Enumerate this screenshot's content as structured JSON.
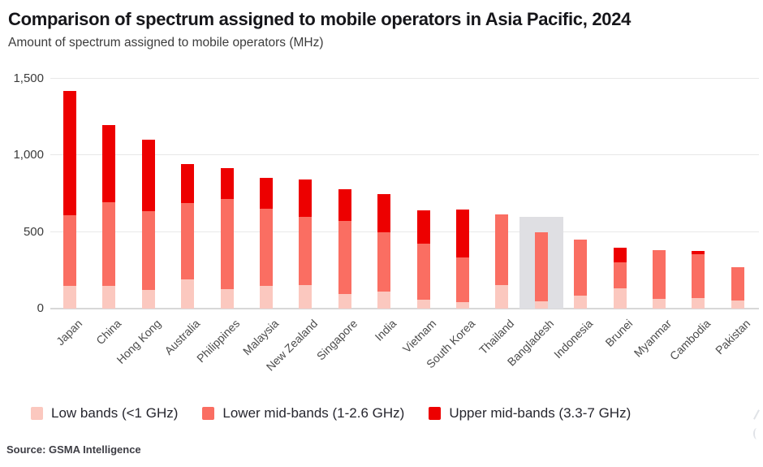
{
  "header": {
    "title": "Comparison of spectrum assigned to mobile operators in Asia Pacific, 2024",
    "subtitle": "Amount of spectrum assigned to mobile operators (MHz)"
  },
  "source": "Source: GSMA Intelligence",
  "chart_data": {
    "type": "bar",
    "stacked": true,
    "title": "Comparison of spectrum assigned to mobile operators in Asia Pacific, 2024",
    "ylabel": "Amount of spectrum assigned to mobile operators (MHz)",
    "ylim": [
      0,
      1500
    ],
    "grid": true,
    "legend_position": "bottom",
    "yticks": [
      {
        "value": 0,
        "label": "0"
      },
      {
        "value": 500,
        "label": "500"
      },
      {
        "value": 1000,
        "label": "1,000"
      },
      {
        "value": 1500,
        "label": "1,500"
      }
    ],
    "categories": [
      "Japan",
      "China",
      "Hong Kong",
      "Australia",
      "Philippines",
      "Malaysia",
      "New Zealand",
      "Singapore",
      "India",
      "Vietnam",
      "South Korea",
      "Thailand",
      "Bangladesh",
      "Indonesia",
      "Brunei",
      "Myanmar",
      "Cambodia",
      "Pakistan"
    ],
    "series": [
      {
        "name": "Low bands (<1 GHz)",
        "color": "#fbc8bf",
        "values": [
          150,
          150,
          120,
          190,
          125,
          150,
          155,
          95,
          110,
          60,
          45,
          155,
          50,
          85,
          135,
          65,
          70,
          55
        ]
      },
      {
        "name": "Lower mid-bands (1-2.6 GHz)",
        "color": "#fa6e62",
        "values": [
          460,
          545,
          515,
          500,
          590,
          500,
          445,
          475,
          390,
          365,
          290,
          460,
          450,
          365,
          165,
          315,
          285,
          215
        ]
      },
      {
        "name": "Upper mid-bands (3.3-7 GHz)",
        "color": "#ed0000",
        "values": [
          810,
          505,
          465,
          255,
          200,
          205,
          245,
          210,
          250,
          215,
          310,
          0,
          0,
          0,
          100,
          0,
          20,
          0
        ]
      }
    ],
    "totals": [
      1420,
      1200,
      1100,
      945,
      915,
      855,
      845,
      780,
      750,
      640,
      645,
      615,
      500,
      450,
      400,
      380,
      375,
      270
    ],
    "highlight": {
      "category": "Bangladesh",
      "value": 600,
      "color": "#dfdfe3"
    }
  }
}
